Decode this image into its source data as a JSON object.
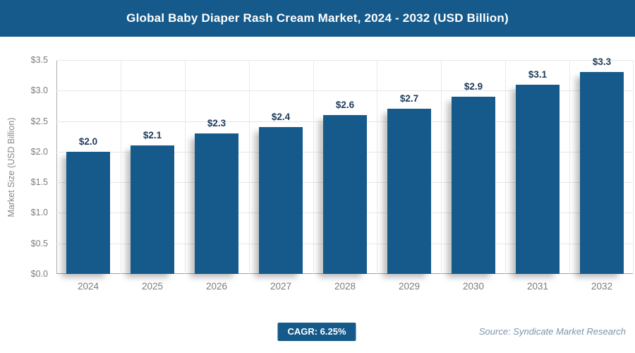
{
  "header": {
    "title": "Global Baby Diaper Rash Cream Market, 2024 - 2032 (USD Billion)"
  },
  "chart_data": {
    "type": "bar",
    "title": "Global Baby Diaper Rash Cream Market, 2024 - 2032 (USD Billion)",
    "categories": [
      "2024",
      "2025",
      "2026",
      "2027",
      "2028",
      "2029",
      "2030",
      "2031",
      "2032"
    ],
    "values": [
      2.0,
      2.1,
      2.3,
      2.4,
      2.6,
      2.7,
      2.9,
      3.1,
      3.3
    ],
    "bar_labels": [
      "$2.0",
      "$2.1",
      "$2.3",
      "$2.4",
      "$2.6",
      "$2.7",
      "$2.9",
      "$3.1",
      "$3.3"
    ],
    "xlabel": "",
    "ylabel": "Market Size (USD Billion)",
    "ylim": [
      0,
      3.5
    ],
    "ytick_labels": [
      "$3.5",
      "$3.0",
      "$2.5",
      "$2.0",
      "$1.5",
      "$1.0",
      "$0.5",
      "$0.0"
    ],
    "grid": true,
    "legend": false,
    "bar_color": "#155a8a",
    "bar_label_color": "#1e3a5a"
  },
  "footer": {
    "cagr_badge": "CAGR: 6.25%",
    "source": "Source: Syndicate Market Research"
  },
  "colors": {
    "brand": "#155a8a",
    "grid": "#e6e6e6",
    "axis": "#a2a2a2",
    "tick_text": "#7d7d7d"
  }
}
